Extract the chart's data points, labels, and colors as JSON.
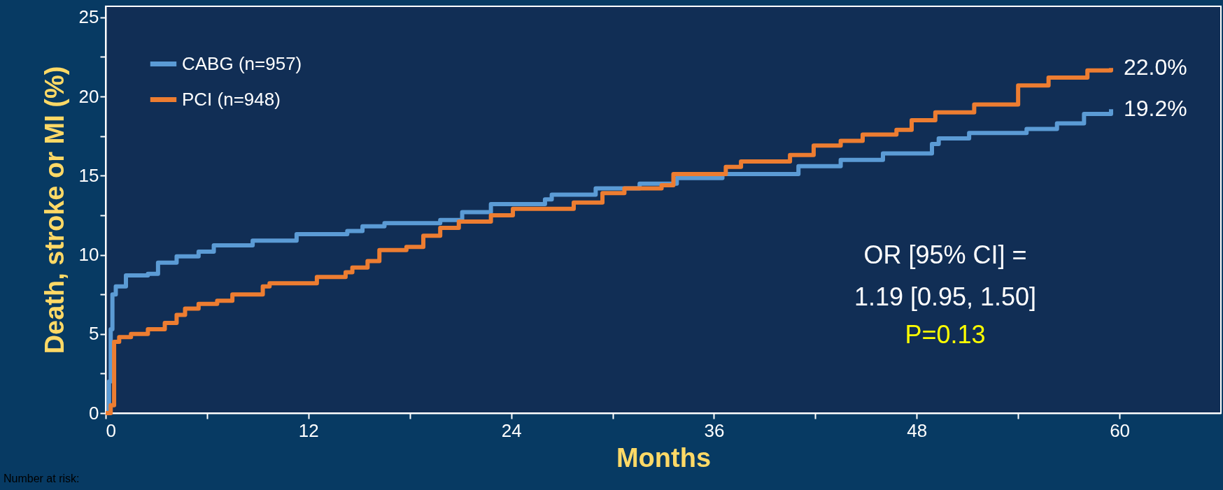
{
  "chart_data": {
    "type": "step",
    "xlabel": "Months",
    "ylabel": "Death, stroke or MI (%)",
    "xlim": [
      0,
      66
    ],
    "ylim": [
      0,
      25.7
    ],
    "xticks": [
      0,
      {
        "value": 6,
        "label": null
      },
      12,
      {
        "value": 18,
        "label": null
      },
      24,
      {
        "value": 30,
        "label": null
      },
      36,
      {
        "value": 42,
        "label": null
      },
      48,
      {
        "value": 54,
        "label": null
      },
      60
    ],
    "yticks": [
      0,
      {
        "value": 2.5,
        "label": null
      },
      5,
      {
        "value": 7.5,
        "label": null
      },
      10,
      {
        "value": 12.5,
        "label": null
      },
      15,
      {
        "value": 17.5,
        "label": null
      },
      20,
      {
        "value": 22.5,
        "label": null
      },
      25
    ],
    "grid": false,
    "legend": "top left",
    "marker": "none",
    "line_style": "solid",
    "series": [
      {
        "name": "CABG (n=957)",
        "color": "#5b9bd5",
        "x": [
          0,
          0.2,
          0.3,
          0.4,
          0.6,
          1.2,
          2.5,
          3.1,
          4.2,
          5.5,
          6.4,
          8.7,
          11.3,
          14.3,
          15.2,
          16.5,
          19.8,
          21.1,
          22.8,
          26,
          26.4,
          29,
          31.6,
          33.8,
          36.5,
          41,
          43.5,
          46,
          48.9,
          49.3,
          51.1,
          54.5,
          56.3,
          57.9,
          59.5
        ],
        "values": [
          0,
          2,
          5.3,
          7.5,
          8,
          8.7,
          8.8,
          9.5,
          9.9,
          10.2,
          10.6,
          10.9,
          11.3,
          11.5,
          11.8,
          12,
          12.2,
          12.7,
          13.2,
          13.5,
          13.8,
          14.2,
          14.5,
          14.85,
          15.1,
          15.6,
          16,
          16.4,
          17,
          17.35,
          17.7,
          17.95,
          18.3,
          18.9,
          19.2
        ]
      },
      {
        "name": "PCI (n=948)",
        "color": "#ed7d31",
        "x": [
          0,
          0.3,
          0.5,
          0.8,
          1.5,
          2.5,
          3.5,
          4.2,
          4.7,
          5.5,
          6.6,
          7.5,
          9.3,
          9.7,
          12.5,
          14.2,
          14.6,
          15.5,
          16.2,
          17.8,
          18.8,
          19.8,
          20.9,
          22.8,
          24.1,
          27.7,
          29.4,
          30.7,
          32.9,
          33.6,
          36.7,
          37.6,
          40.5,
          41.9,
          43.5,
          44.8,
          46.8,
          47.7,
          49.1,
          51.4,
          54,
          55.8,
          58.1,
          59.5
        ],
        "values": [
          0,
          0.5,
          4.5,
          4.8,
          5,
          5.3,
          5.7,
          6.2,
          6.6,
          6.9,
          7.1,
          7.5,
          8,
          8.2,
          8.6,
          8.9,
          9.2,
          9.6,
          10.3,
          10.5,
          11.2,
          11.7,
          12.1,
          12.5,
          12.9,
          13.3,
          13.9,
          14.2,
          14.4,
          15.1,
          15.55,
          15.9,
          16.3,
          16.9,
          17.2,
          17.6,
          17.9,
          18.5,
          19,
          19.5,
          20.7,
          21.2,
          21.65,
          21.8
        ]
      }
    ],
    "annotations": [
      "OR [95% CI] =",
      "1.19 [0.95, 1.50]",
      "P=0.13",
      "Number at risk:",
      {
        "text": "22.0%",
        "x": 59.5,
        "y": 21.8
      },
      {
        "text": "19.2%",
        "x": 59.5,
        "y": 19.2
      }
    ]
  }
}
